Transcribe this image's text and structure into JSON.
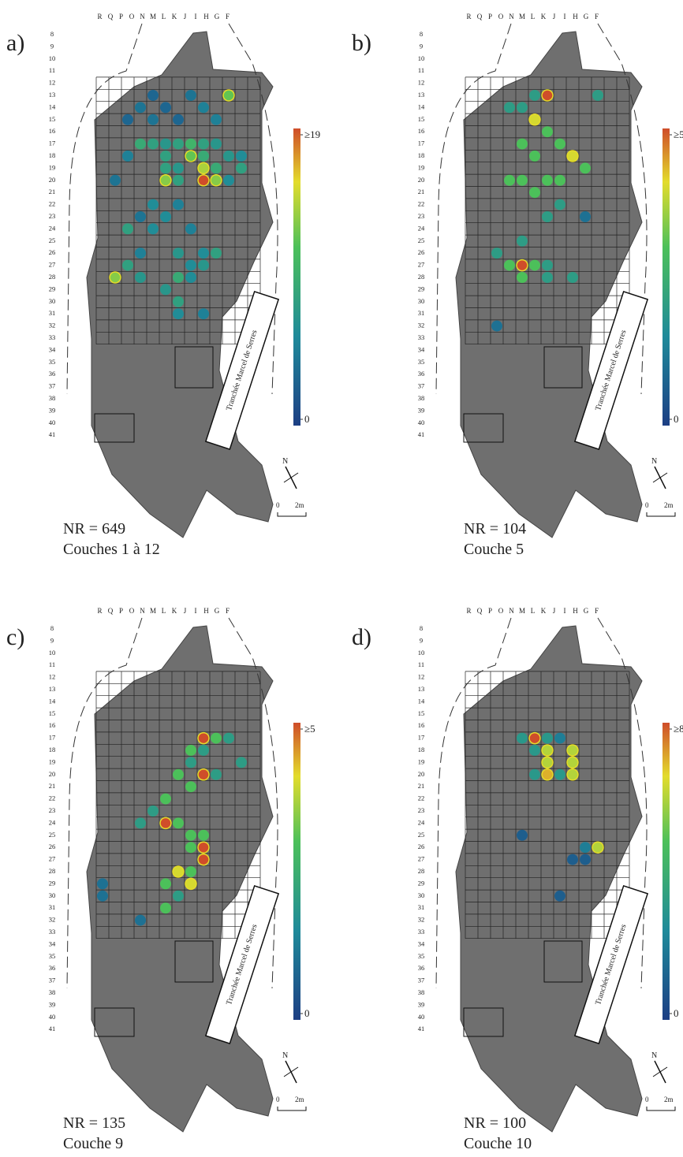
{
  "columns": [
    "R",
    "Q",
    "P",
    "O",
    "N",
    "M",
    "L",
    "K",
    "J",
    "I",
    "H",
    "G",
    "F"
  ],
  "rows": [
    8,
    9,
    10,
    11,
    12,
    13,
    14,
    15,
    16,
    17,
    18,
    19,
    20,
    21,
    22,
    23,
    24,
    25,
    26,
    27,
    28,
    29,
    30,
    31,
    32,
    33,
    34,
    35,
    36,
    37,
    38,
    39,
    40,
    41
  ],
  "trench_label": "Tranchée Marcel de Serres",
  "north": "N",
  "scale": {
    "start": 0,
    "end_label": "2m"
  },
  "panels": [
    {
      "label": "a)",
      "count_text": "NR = 649",
      "layers": "Couches 1 à 12",
      "colorbar": {
        "min": 0,
        "max": {
          "value": 19,
          "label": "≥19"
        }
      },
      "dots": [
        [
          "N",
          13,
          3
        ],
        [
          "K",
          13,
          4
        ],
        [
          "H",
          13,
          12
        ],
        [
          "O",
          14,
          4
        ],
        [
          "M",
          14,
          3
        ],
        [
          "J",
          14,
          5
        ],
        [
          "P",
          15,
          3
        ],
        [
          "N",
          15,
          4
        ],
        [
          "L",
          15,
          3
        ],
        [
          "I",
          15,
          5
        ],
        [
          "O",
          17,
          9
        ],
        [
          "N",
          17,
          8
        ],
        [
          "M",
          17,
          7
        ],
        [
          "L",
          17,
          8
        ],
        [
          "K",
          17,
          10
        ],
        [
          "J",
          17,
          8
        ],
        [
          "I",
          17,
          7
        ],
        [
          "P",
          18,
          5
        ],
        [
          "M",
          18,
          8
        ],
        [
          "K",
          18,
          12
        ],
        [
          "J",
          18,
          9
        ],
        [
          "H",
          18,
          7
        ],
        [
          "G",
          18,
          6
        ],
        [
          "M",
          19,
          8
        ],
        [
          "L",
          19,
          7
        ],
        [
          "J",
          19,
          14
        ],
        [
          "I",
          19,
          9
        ],
        [
          "G",
          19,
          8
        ],
        [
          "Q",
          20,
          4
        ],
        [
          "M",
          20,
          13
        ],
        [
          "L",
          20,
          8
        ],
        [
          "J",
          20,
          19
        ],
        [
          "I",
          20,
          13
        ],
        [
          "H",
          20,
          6
        ],
        [
          "N",
          22,
          6
        ],
        [
          "L",
          22,
          5
        ],
        [
          "O",
          23,
          4
        ],
        [
          "M",
          23,
          6
        ],
        [
          "P",
          24,
          8
        ],
        [
          "N",
          24,
          6
        ],
        [
          "K",
          24,
          5
        ],
        [
          "O",
          26,
          5
        ],
        [
          "L",
          26,
          7
        ],
        [
          "J",
          26,
          6
        ],
        [
          "I",
          26,
          8
        ],
        [
          "P",
          27,
          8
        ],
        [
          "K",
          27,
          6
        ],
        [
          "J",
          27,
          7
        ],
        [
          "Q",
          28,
          13
        ],
        [
          "O",
          28,
          7
        ],
        [
          "L",
          28,
          9
        ],
        [
          "K",
          28,
          6
        ],
        [
          "M",
          29,
          7
        ],
        [
          "L",
          30,
          8
        ],
        [
          "L",
          31,
          6
        ],
        [
          "J",
          31,
          5
        ]
      ]
    },
    {
      "label": "b)",
      "count_text": "NR = 104",
      "layers": "Couche 5",
      "colorbar": {
        "min": 0,
        "max": {
          "value": 5,
          "label": "≥5"
        }
      },
      "dots": [
        [
          "L",
          13,
          5
        ],
        [
          "M",
          13,
          2
        ],
        [
          "N",
          14,
          2
        ],
        [
          "O",
          14,
          2
        ],
        [
          "H",
          13,
          2
        ],
        [
          "M",
          15,
          4
        ],
        [
          "L",
          16,
          3
        ],
        [
          "N",
          17,
          3
        ],
        [
          "K",
          17,
          3
        ],
        [
          "M",
          18,
          3
        ],
        [
          "J",
          18,
          4
        ],
        [
          "I",
          19,
          3
        ],
        [
          "O",
          20,
          3
        ],
        [
          "N",
          20,
          3
        ],
        [
          "L",
          20,
          3
        ],
        [
          "K",
          20,
          3
        ],
        [
          "M",
          21,
          3
        ],
        [
          "K",
          22,
          2
        ],
        [
          "L",
          23,
          2
        ],
        [
          "N",
          25,
          2
        ],
        [
          "P",
          26,
          2
        ],
        [
          "N",
          27,
          5
        ],
        [
          "O",
          27,
          3
        ],
        [
          "M",
          27,
          3
        ],
        [
          "L",
          27,
          2
        ],
        [
          "N",
          28,
          3
        ],
        [
          "L",
          28,
          2
        ],
        [
          "J",
          28,
          2
        ],
        [
          "P",
          32,
          1
        ],
        [
          "I",
          23,
          1
        ]
      ]
    },
    {
      "label": "c)",
      "count_text": "NR = 135",
      "layers": "Couche 9",
      "colorbar": {
        "min": 0,
        "max": {
          "value": 5,
          "label": "≥5"
        }
      },
      "dots": [
        [
          "J",
          17,
          5
        ],
        [
          "I",
          17,
          3
        ],
        [
          "H",
          17,
          2
        ],
        [
          "K",
          18,
          3
        ],
        [
          "J",
          18,
          2
        ],
        [
          "G",
          19,
          2
        ],
        [
          "K",
          19,
          2
        ],
        [
          "J",
          20,
          5
        ],
        [
          "I",
          20,
          2
        ],
        [
          "L",
          20,
          3
        ],
        [
          "K",
          21,
          3
        ],
        [
          "M",
          22,
          3
        ],
        [
          "N",
          23,
          2
        ],
        [
          "M",
          24,
          5
        ],
        [
          "O",
          24,
          2
        ],
        [
          "L",
          24,
          3
        ],
        [
          "K",
          25,
          3
        ],
        [
          "J",
          25,
          3
        ],
        [
          "J",
          26,
          5
        ],
        [
          "K",
          26,
          3
        ],
        [
          "J",
          27,
          5
        ],
        [
          "L",
          28,
          4
        ],
        [
          "K",
          28,
          3
        ],
        [
          "M",
          29,
          3
        ],
        [
          "K",
          29,
          4
        ],
        [
          "L",
          30,
          2
        ],
        [
          "M",
          31,
          3
        ],
        [
          "R",
          29,
          1
        ],
        [
          "R",
          30,
          1
        ],
        [
          "O",
          32,
          1
        ]
      ]
    },
    {
      "label": "d)",
      "count_text": "NR = 100",
      "layers": "Couche 10",
      "colorbar": {
        "min": 0,
        "max": {
          "value": 8,
          "label": "≥8"
        }
      },
      "dots": [
        [
          "N",
          17,
          3
        ],
        [
          "M",
          17,
          8
        ],
        [
          "L",
          17,
          3
        ],
        [
          "K",
          17,
          2
        ],
        [
          "M",
          18,
          3
        ],
        [
          "L",
          18,
          6
        ],
        [
          "J",
          18,
          6
        ],
        [
          "L",
          19,
          6
        ],
        [
          "J",
          19,
          6
        ],
        [
          "M",
          20,
          3
        ],
        [
          "L",
          20,
          7
        ],
        [
          "K",
          20,
          3
        ],
        [
          "J",
          20,
          6
        ],
        [
          "N",
          25,
          1
        ],
        [
          "I",
          26,
          2
        ],
        [
          "H",
          26,
          6
        ],
        [
          "J",
          27,
          1
        ],
        [
          "I",
          27,
          1
        ],
        [
          "K",
          30,
          1
        ]
      ]
    }
  ]
}
